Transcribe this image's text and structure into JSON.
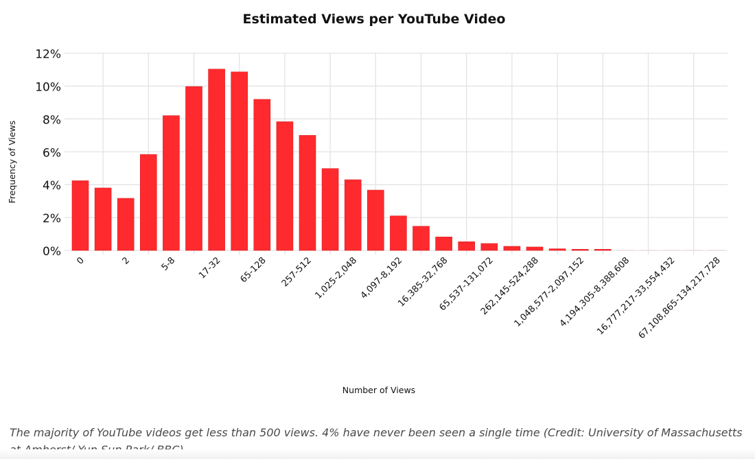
{
  "chart_data": {
    "type": "bar",
    "title": "Estimated Views per YouTube Video",
    "xlabel": "Number of Views",
    "ylabel": "Frequency of Views",
    "ylim": [
      0,
      12
    ],
    "yticks": [
      "0%",
      "2%",
      "4%",
      "6%",
      "8%",
      "10%",
      "12%"
    ],
    "ytick_values": [
      0,
      2,
      4,
      6,
      8,
      10,
      12
    ],
    "grid": true,
    "bar_color": "#ff2a2e",
    "categories": [
      "0",
      "",
      "2",
      "",
      "5-8",
      "",
      "17-32",
      "",
      "65-128",
      "",
      "257-512",
      "",
      "1,025-2,048",
      "",
      "4,097-8,192",
      "",
      "16,385-32,768",
      "",
      "65,537-131,072",
      "",
      "262,145-524,288",
      "",
      "1,048,577-2,097,152",
      "",
      "4,194,305-8,388,608",
      "",
      "16,777,217-33,554,432",
      "",
      "67,108,865-134,217,728"
    ],
    "values": [
      4.24,
      3.8,
      3.17,
      5.84,
      8.2,
      9.97,
      11.03,
      10.86,
      9.19,
      7.83,
      7.0,
      4.98,
      4.3,
      3.67,
      2.1,
      1.47,
      0.82,
      0.53,
      0.42,
      0.25,
      0.21,
      0.1,
      0.07,
      0.07,
      0.01,
      0.01,
      0.01,
      0.01,
      0.01
    ]
  },
  "caption": "The majority of YouTube videos get less than 500 views. 4% have never been seen a single time (Credit: University of Massachusetts at Amherst/ Yun Sun Park/ BBC)"
}
